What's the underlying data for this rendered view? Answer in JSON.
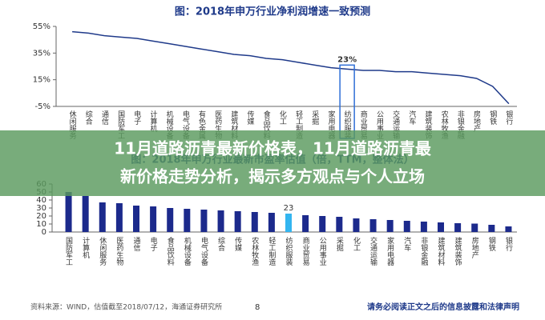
{
  "chart_data": [
    {
      "type": "line",
      "title": "图：2018年申万行业净利润增速一致预测",
      "categories": [
        "休闲服务",
        "综合",
        "通信",
        "国防军工",
        "电子",
        "计算机",
        "机械设备",
        "电气设备",
        "有色金属",
        "医药生物",
        "建筑材料",
        "传媒",
        "食品饮料",
        "化工",
        "轻工制造",
        "采掘",
        "家用电器",
        "纺织服装",
        "商业贸易",
        "公用事业",
        "交通运输",
        "汽车",
        "建筑装饰",
        "农林牧渔",
        "非银金融",
        "房地产",
        "钢铁",
        "银行"
      ],
      "values": [
        51,
        50,
        48,
        47,
        46,
        44,
        42,
        40,
        38,
        36,
        34,
        33,
        31,
        30,
        28,
        26,
        24,
        23,
        22,
        22,
        21,
        21,
        20,
        19,
        18,
        16,
        10,
        -3
      ],
      "color": "#1f3a8a",
      "ylim": [
        -5,
        55
      ],
      "yticks": [
        {
          "value": -5,
          "label": "-5%"
        },
        {
          "value": 15,
          "label": "15%"
        },
        {
          "value": 35,
          "label": "35%"
        },
        {
          "value": 55,
          "label": "55%"
        }
      ],
      "annotations": [
        {
          "text": "23%",
          "category": "纺织服装"
        }
      ]
    },
    {
      "type": "bar",
      "title": "图：2018年申万行业最新市盈率估值（倍，TTM，整体法）",
      "categories": [
        "国防军工",
        "计算机",
        "休闲服务",
        "医药生物",
        "通信",
        "电子",
        "食品饮料",
        "机械设备",
        "电气设备",
        "综合",
        "传媒",
        "农林牧渔",
        "轻工制造",
        "纺织服装",
        "商业贸易",
        "公用事业",
        "采掘",
        "化工",
        "交通运输",
        "家用电器",
        "汽车",
        "非银金融",
        "建筑材料",
        "建筑装饰",
        "房地产",
        "钢铁",
        "银行"
      ],
      "values": [
        50,
        45,
        37,
        36,
        33,
        32,
        30,
        29,
        28,
        27,
        26,
        25,
        24,
        23,
        21,
        20,
        19,
        17,
        16,
        15,
        14,
        13,
        12,
        11,
        10.5,
        9,
        7
      ],
      "colors": [
        "#1c2a8c",
        "#1c2a8c",
        "#1c2a8c",
        "#1c2a8c",
        "#1c2a8c",
        "#1c2a8c",
        "#1c2a8c",
        "#1c2a8c",
        "#1c2a8c",
        "#1c2a8c",
        "#1c2a8c",
        "#1c2a8c",
        "#1c2a8c",
        "#33b5f0",
        "#1c2a8c",
        "#1c2a8c",
        "#1c2a8c",
        "#1c2a8c",
        "#1c2a8c",
        "#1c2a8c",
        "#1c2a8c",
        "#1c2a8c",
        "#1c2a8c",
        "#1c2a8c",
        "#1c2a8c",
        "#1c2a8c",
        "#1c2a8c"
      ],
      "ylim": [
        0,
        60
      ],
      "yticks": [
        0,
        10,
        20,
        30,
        40,
        50,
        60
      ],
      "labeled": [
        "纺织服装"
      ]
    }
  ],
  "banner": {
    "lines": [
      "11月道路沥青最新价格表，11月道路沥青最",
      "新价格走势分析，揭示多方观点与个人立场"
    ]
  },
  "footer": {
    "source": "资料来源：WIND，估值截至2018/07/12，海通证券研究所",
    "page": "8",
    "disclaimer": "请务必阅读正文之后的信息披露和法律声明"
  }
}
